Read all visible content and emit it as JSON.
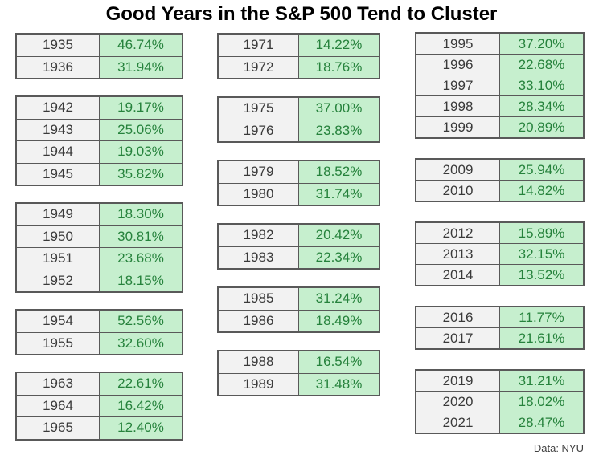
{
  "title": "Good Years in the S&P 500 Tend to Cluster",
  "footer": {
    "source_label": "Data: NYU"
  },
  "colors": {
    "year_cell_bg": "#f2f2f2",
    "year_text": "#3a3a3a",
    "value_cell_bg": "#c6efce",
    "value_text": "#26823c",
    "border": "#595959",
    "title_text": "#000000"
  },
  "chart_data": {
    "type": "table",
    "title": "Good Years in the S&P 500 Tend to Cluster",
    "source": "Data: NYU",
    "columns": [
      {
        "clusters": [
          {
            "rows": [
              {
                "year": "1935",
                "value": "46.74%"
              },
              {
                "year": "1936",
                "value": "31.94%"
              }
            ]
          },
          {
            "rows": [
              {
                "year": "1942",
                "value": "19.17%"
              },
              {
                "year": "1943",
                "value": "25.06%"
              },
              {
                "year": "1944",
                "value": "19.03%"
              },
              {
                "year": "1945",
                "value": "35.82%"
              }
            ]
          },
          {
            "rows": [
              {
                "year": "1949",
                "value": "18.30%"
              },
              {
                "year": "1950",
                "value": "30.81%"
              },
              {
                "year": "1951",
                "value": "23.68%"
              },
              {
                "year": "1952",
                "value": "18.15%"
              }
            ]
          },
          {
            "rows": [
              {
                "year": "1954",
                "value": "52.56%"
              },
              {
                "year": "1955",
                "value": "32.60%"
              }
            ]
          },
          {
            "rows": [
              {
                "year": "1963",
                "value": "22.61%"
              },
              {
                "year": "1964",
                "value": "16.42%"
              },
              {
                "year": "1965",
                "value": "12.40%"
              }
            ]
          }
        ]
      },
      {
        "clusters": [
          {
            "rows": [
              {
                "year": "1971",
                "value": "14.22%"
              },
              {
                "year": "1972",
                "value": "18.76%"
              }
            ]
          },
          {
            "rows": [
              {
                "year": "1975",
                "value": "37.00%"
              },
              {
                "year": "1976",
                "value": "23.83%"
              }
            ]
          },
          {
            "rows": [
              {
                "year": "1979",
                "value": "18.52%"
              },
              {
                "year": "1980",
                "value": "31.74%"
              }
            ]
          },
          {
            "rows": [
              {
                "year": "1982",
                "value": "20.42%"
              },
              {
                "year": "1983",
                "value": "22.34%"
              }
            ]
          },
          {
            "rows": [
              {
                "year": "1985",
                "value": "31.24%"
              },
              {
                "year": "1986",
                "value": "18.49%"
              }
            ]
          },
          {
            "rows": [
              {
                "year": "1988",
                "value": "16.54%"
              },
              {
                "year": "1989",
                "value": "31.48%"
              }
            ]
          }
        ]
      },
      {
        "clusters": [
          {
            "rows": [
              {
                "year": "1995",
                "value": "37.20%"
              },
              {
                "year": "1996",
                "value": "22.68%"
              },
              {
                "year": "1997",
                "value": "33.10%"
              },
              {
                "year": "1998",
                "value": "28.34%"
              },
              {
                "year": "1999",
                "value": "20.89%"
              }
            ]
          },
          {
            "rows": [
              {
                "year": "2009",
                "value": "25.94%"
              },
              {
                "year": "2010",
                "value": "14.82%"
              }
            ]
          },
          {
            "rows": [
              {
                "year": "2012",
                "value": "15.89%"
              },
              {
                "year": "2013",
                "value": "32.15%"
              },
              {
                "year": "2014",
                "value": "13.52%"
              }
            ]
          },
          {
            "rows": [
              {
                "year": "2016",
                "value": "11.77%"
              },
              {
                "year": "2017",
                "value": "21.61%"
              }
            ]
          },
          {
            "rows": [
              {
                "year": "2019",
                "value": "31.21%"
              },
              {
                "year": "2020",
                "value": "18.02%"
              },
              {
                "year": "2021",
                "value": "28.47%"
              }
            ]
          }
        ]
      }
    ]
  }
}
